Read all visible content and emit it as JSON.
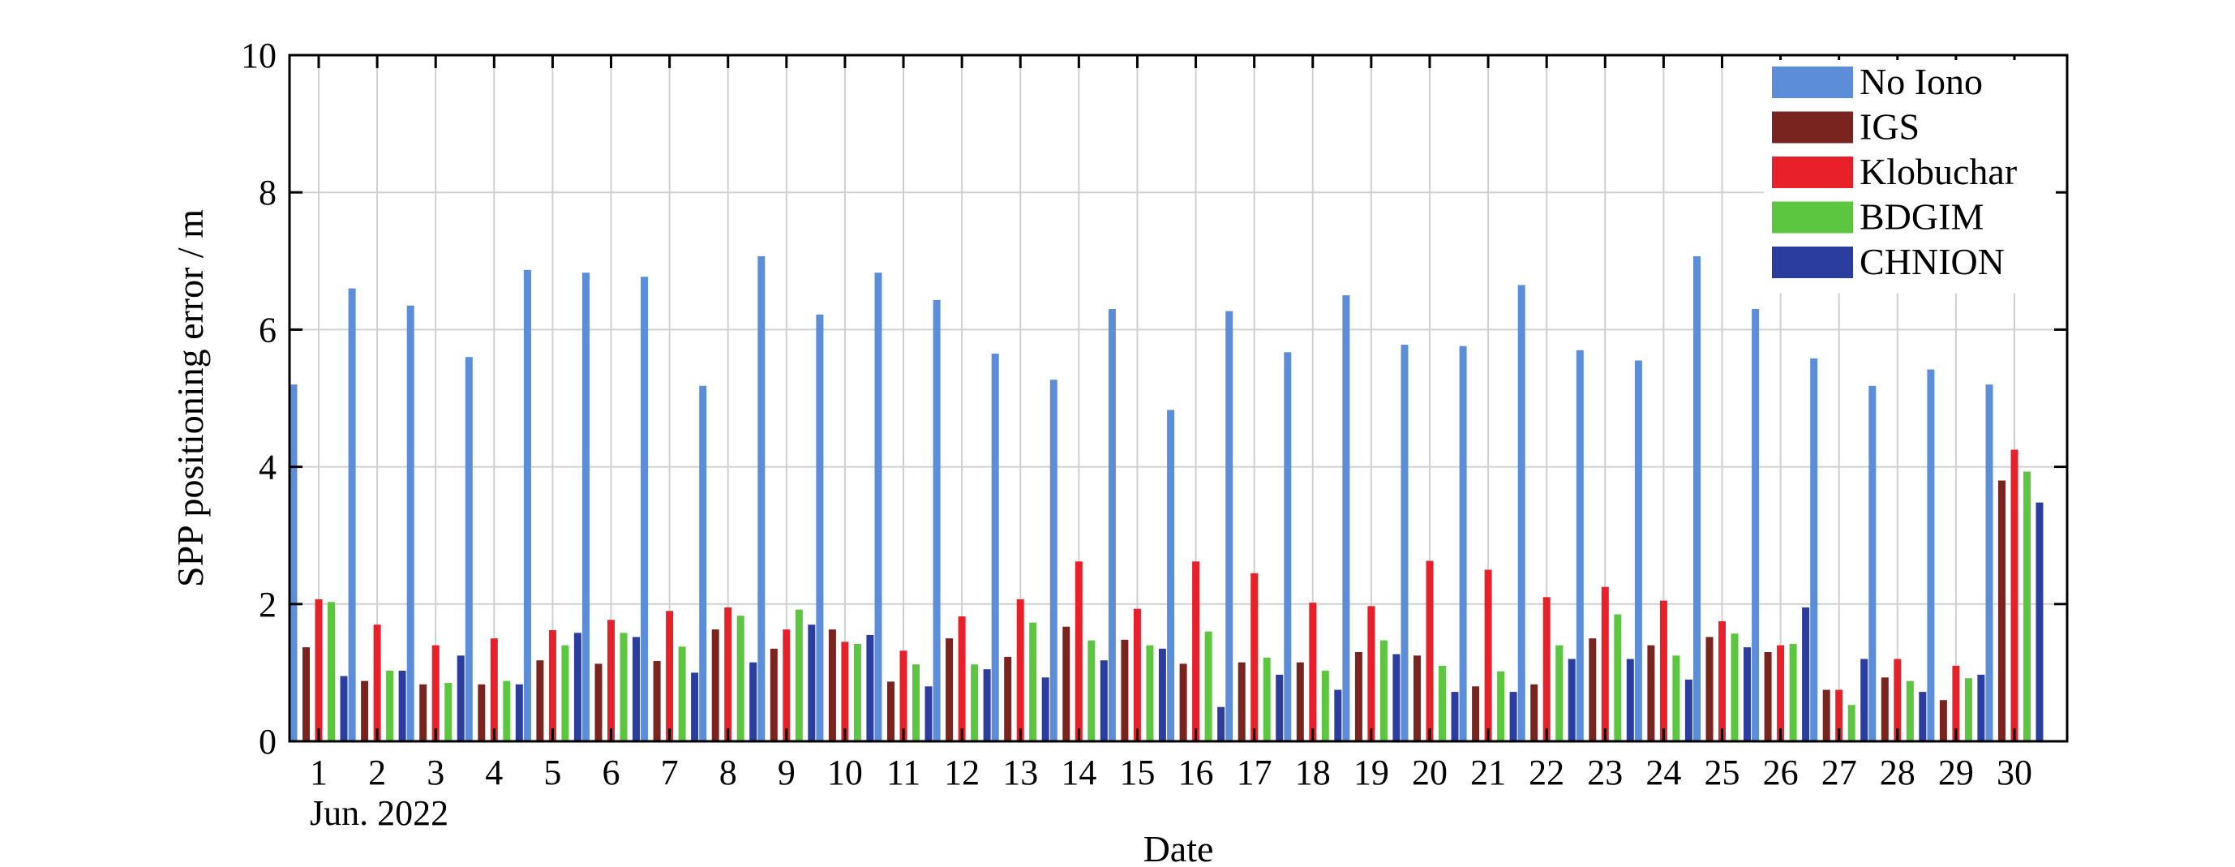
{
  "chart_data": {
    "type": "bar",
    "title": "",
    "xlabel": "Date",
    "ylabel": "SPP positioning error / m",
    "x_sublabel": "Jun. 2022",
    "ylim": [
      0,
      10
    ],
    "yticks": [
      "0",
      "2",
      "4",
      "6",
      "8",
      "10"
    ],
    "grid": true,
    "legend_position": "top-right",
    "categories": [
      "1",
      "2",
      "3",
      "4",
      "5",
      "6",
      "7",
      "8",
      "9",
      "10",
      "11",
      "12",
      "13",
      "14",
      "15",
      "16",
      "17",
      "18",
      "19",
      "20",
      "21",
      "22",
      "23",
      "24",
      "25",
      "26",
      "27",
      "28",
      "29",
      "30"
    ],
    "series": [
      {
        "name": "No Iono",
        "color": "#5b8dd9",
        "values": [
          5.2,
          6.6,
          6.35,
          5.6,
          6.87,
          6.83,
          6.77,
          5.18,
          7.07,
          6.22,
          6.83,
          6.43,
          5.65,
          5.27,
          6.3,
          4.83,
          6.27,
          5.67,
          6.5,
          5.78,
          5.76,
          6.65,
          5.7,
          5.55,
          7.07,
          6.3,
          5.58,
          5.18,
          5.42,
          5.2
        ]
      },
      {
        "name": "IGS",
        "color": "#7a2420",
        "values": [
          1.37,
          0.88,
          0.83,
          0.83,
          1.18,
          1.13,
          1.17,
          1.63,
          1.35,
          1.63,
          0.87,
          1.5,
          1.23,
          1.67,
          1.48,
          1.13,
          1.15,
          1.15,
          1.3,
          1.25,
          0.8,
          0.83,
          1.5,
          1.4,
          1.52,
          1.3,
          0.75,
          0.93,
          0.6,
          3.8
        ]
      },
      {
        "name": "Klobuchar",
        "color": "#e8202a",
        "values": [
          2.07,
          1.7,
          1.4,
          1.5,
          1.62,
          1.77,
          1.9,
          1.95,
          1.63,
          1.45,
          1.32,
          1.82,
          2.07,
          2.62,
          1.93,
          2.62,
          2.45,
          2.02,
          1.97,
          2.63,
          2.5,
          2.1,
          2.25,
          2.05,
          1.75,
          1.4,
          0.75,
          1.2,
          1.1,
          4.25
        ]
      },
      {
        "name": "BDGIM",
        "color": "#5cc641",
        "values": [
          2.03,
          1.03,
          0.85,
          0.88,
          1.4,
          1.58,
          1.38,
          1.83,
          1.92,
          1.42,
          1.12,
          1.12,
          1.73,
          1.47,
          1.4,
          1.6,
          1.22,
          1.03,
          1.47,
          1.1,
          1.02,
          1.4,
          1.85,
          1.25,
          1.57,
          1.42,
          0.53,
          0.88,
          0.92,
          3.93
        ]
      },
      {
        "name": "CHNION",
        "color": "#2b3ea0",
        "values": [
          0.95,
          1.03,
          1.25,
          0.83,
          1.58,
          1.52,
          1.0,
          1.15,
          1.7,
          1.55,
          0.8,
          1.05,
          0.93,
          1.18,
          1.35,
          0.5,
          0.97,
          0.75,
          1.27,
          0.72,
          0.72,
          1.2,
          1.2,
          0.9,
          1.37,
          1.95,
          1.2,
          0.72,
          0.97,
          3.48
        ]
      }
    ]
  }
}
